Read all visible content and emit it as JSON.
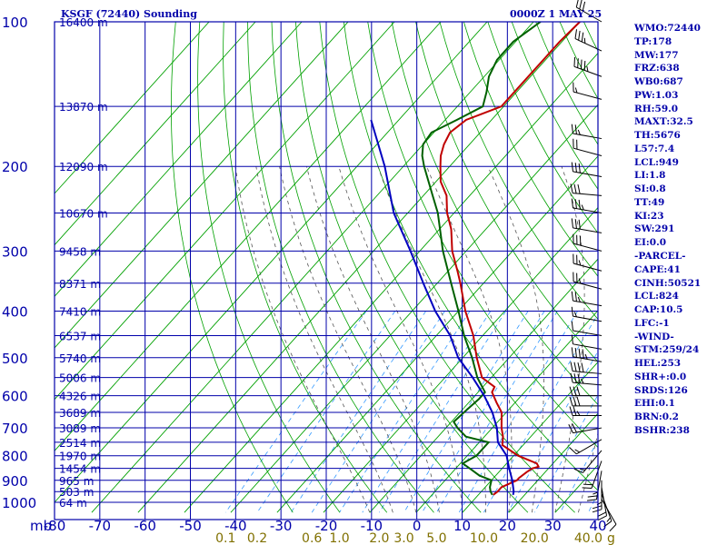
{
  "header": {
    "station": "KSGF (72440) Sounding",
    "time": "0000Z  1 MAY 25"
  },
  "colors": {
    "axes": "#0000aa",
    "isotherm": "#00a000",
    "dry_adiabat": "#00a000",
    "moist_adiabat": "#555555",
    "mixing_ratio": "#3399ff",
    "temperature": "#c00000",
    "dewpoint": "#006000",
    "parcel": "#0000c0",
    "text": "#0000aa",
    "barb": "#000000",
    "mixing_label": "#807000"
  },
  "indices": [
    "WMO:72440",
    "TP:178",
    "MW:177",
    "FRZ:638",
    "WB0:687",
    "PW:1.03",
    "RH:59.0",
    "MAXT:32.5",
    "TH:5676",
    "L57:7.4",
    "LCL:949",
    "LI:1.8",
    "SI:0.8",
    "TT:49",
    "KI:23",
    "SW:291",
    "EI:0.0",
    "-PARCEL-",
    "CAPE:41",
    "CINH:50521",
    "LCL:824",
    "CAP:10.5",
    "LFC:-1",
    "-WIND-",
    "STM:259/24",
    "HEL:253",
    "SHR+:0.0",
    "SRDS:126",
    "EHI:0.1",
    "BRN:0.2",
    "BSHR:238"
  ],
  "chart_data": {
    "type": "line",
    "title": "KSGF (72440) Sounding",
    "subtitle": "0000Z  1 MAY 25",
    "xlabel": "",
    "ylabel": "mb",
    "y_scale": "log",
    "xlim": [
      -80,
      40
    ],
    "ylim": [
      1000,
      100
    ],
    "grid": true,
    "x_ticks": [
      -80,
      -70,
      -60,
      -50,
      -40,
      -30,
      -20,
      -10,
      0,
      10,
      20,
      30,
      40
    ],
    "x_tick_labels": [
      "-80",
      "-70",
      "-60",
      "-50",
      "-40",
      "-30",
      "-20",
      "-10",
      "0",
      "10",
      "20",
      "30",
      "40"
    ],
    "y_ticks": [
      100,
      200,
      300,
      400,
      500,
      600,
      700,
      800,
      900,
      1000
    ],
    "y_tick_labels": [
      "100",
      "200",
      "300",
      "400",
      "500",
      "600",
      "700",
      "800",
      "900",
      "1000"
    ],
    "height_labels": [
      {
        "p": 100,
        "text": "16400 m"
      },
      {
        "p": 150,
        "text": "13870 m"
      },
      {
        "p": 200,
        "text": "12090 m"
      },
      {
        "p": 250,
        "text": "10670 m"
      },
      {
        "p": 300,
        "text": "9458 m"
      },
      {
        "p": 350,
        "text": "8371 m"
      },
      {
        "p": 400,
        "text": "7410 m"
      },
      {
        "p": 450,
        "text": "6537 m"
      },
      {
        "p": 500,
        "text": "5740 m"
      },
      {
        "p": 550,
        "text": "5006 m"
      },
      {
        "p": 600,
        "text": "4326 m"
      },
      {
        "p": 650,
        "text": "3689 m"
      },
      {
        "p": 700,
        "text": "3089 m"
      },
      {
        "p": 750,
        "text": "2514 m"
      },
      {
        "p": 800,
        "text": "1970 m"
      },
      {
        "p": 850,
        "text": "1454 m"
      },
      {
        "p": 900,
        "text": "965 m"
      },
      {
        "p": 950,
        "text": "503 m"
      },
      {
        "p": 1000,
        "text": "64 m"
      }
    ],
    "mixing_ratio_labels": [
      {
        "w": 0.1,
        "text": "0.1"
      },
      {
        "w": 0.2,
        "text": "0.2"
      },
      {
        "w": 0.6,
        "text": "0.6"
      },
      {
        "w": 1.0,
        "text": "1.0"
      },
      {
        "w": 2.0,
        "text": "2.0"
      },
      {
        "w": 3.0,
        "text": "3.0"
      },
      {
        "w": 5.0,
        "text": "5.0"
      },
      {
        "w": 10.0,
        "text": "10.0"
      },
      {
        "w": 20.0,
        "text": "20.0"
      },
      {
        "w": 40.0,
        "text": "40.0"
      }
    ],
    "mixing_ratio_unit": "g",
    "series": [
      {
        "key": "temperature",
        "points": [
          [
            100,
            -60
          ],
          [
            110,
            -60.5
          ],
          [
            120,
            -60.5
          ],
          [
            130,
            -60.5
          ],
          [
            140,
            -60.5
          ],
          [
            150,
            -60.5
          ],
          [
            160,
            -65.5
          ],
          [
            170,
            -66.5
          ],
          [
            180,
            -65.5
          ],
          [
            190,
            -64
          ],
          [
            200,
            -62
          ],
          [
            215,
            -59
          ],
          [
            230,
            -55
          ],
          [
            250,
            -51.5
          ],
          [
            270,
            -47.5
          ],
          [
            300,
            -43
          ],
          [
            330,
            -38
          ],
          [
            350,
            -35
          ],
          [
            400,
            -28.5
          ],
          [
            450,
            -22
          ],
          [
            500,
            -17
          ],
          [
            550,
            -12
          ],
          [
            575,
            -7.5
          ],
          [
            590,
            -7
          ],
          [
            620,
            -4
          ],
          [
            650,
            -1
          ],
          [
            700,
            2
          ],
          [
            730,
            4
          ],
          [
            760,
            5.5
          ],
          [
            800,
            11
          ],
          [
            830,
            16.5
          ],
          [
            843,
            17.5
          ],
          [
            850,
            16.5
          ],
          [
            865,
            16
          ],
          [
            890,
            15.5
          ],
          [
            900,
            15.5
          ],
          [
            930,
            13.5
          ],
          [
            950,
            13.5
          ],
          [
            965,
            13.2
          ]
        ]
      },
      {
        "key": "dewpoint",
        "points": [
          [
            100,
            -68.5
          ],
          [
            110,
            -70.5
          ],
          [
            120,
            -70.5
          ],
          [
            130,
            -69
          ],
          [
            140,
            -66.5
          ],
          [
            150,
            -64.5
          ],
          [
            160,
            -67.5
          ],
          [
            170,
            -70.5
          ],
          [
            180,
            -70
          ],
          [
            190,
            -68
          ],
          [
            200,
            -65.5
          ],
          [
            230,
            -58
          ],
          [
            250,
            -53.5
          ],
          [
            300,
            -45
          ],
          [
            350,
            -37
          ],
          [
            400,
            -30
          ],
          [
            450,
            -24
          ],
          [
            500,
            -18
          ],
          [
            550,
            -13
          ],
          [
            590,
            -8.5
          ],
          [
            610,
            -8.5
          ],
          [
            640,
            -9
          ],
          [
            680,
            -9.5
          ],
          [
            700,
            -7.5
          ],
          [
            730,
            -4
          ],
          [
            750,
            2
          ],
          [
            800,
            2
          ],
          [
            830,
            0.5
          ],
          [
            850,
            3
          ],
          [
            880,
            6.5
          ],
          [
            900,
            10
          ],
          [
            930,
            11
          ],
          [
            950,
            12
          ],
          [
            965,
            13
          ]
        ]
      },
      {
        "key": "parcel",
        "points": [
          [
            160,
            -86
          ],
          [
            200,
            -74
          ],
          [
            250,
            -63
          ],
          [
            300,
            -52
          ],
          [
            350,
            -43
          ],
          [
            400,
            -35
          ],
          [
            450,
            -27
          ],
          [
            500,
            -21
          ],
          [
            550,
            -14
          ],
          [
            600,
            -8
          ],
          [
            650,
            -3
          ],
          [
            700,
            1
          ],
          [
            750,
            4
          ],
          [
            800,
            8.5
          ],
          [
            850,
            11.5
          ],
          [
            900,
            14.5
          ],
          [
            950,
            17
          ],
          [
            965,
            17.5
          ]
        ]
      }
    ],
    "wind_barbs": [
      {
        "p": 100,
        "dir": 300,
        "kt": 30
      },
      {
        "p": 115,
        "dir": 295,
        "kt": 35
      },
      {
        "p": 130,
        "dir": 290,
        "kt": 45
      },
      {
        "p": 145,
        "dir": 285,
        "kt": 55
      },
      {
        "p": 175,
        "dir": 280,
        "kt": 65
      },
      {
        "p": 190,
        "dir": 285,
        "kt": 60
      },
      {
        "p": 210,
        "dir": 280,
        "kt": 70
      },
      {
        "p": 230,
        "dir": 275,
        "kt": 70
      },
      {
        "p": 250,
        "dir": 280,
        "kt": 75
      },
      {
        "p": 275,
        "dir": 280,
        "kt": 70
      },
      {
        "p": 300,
        "dir": 285,
        "kt": 70
      },
      {
        "p": 330,
        "dir": 285,
        "kt": 65
      },
      {
        "p": 360,
        "dir": 285,
        "kt": 65
      },
      {
        "p": 390,
        "dir": 280,
        "kt": 65
      },
      {
        "p": 420,
        "dir": 280,
        "kt": 55
      },
      {
        "p": 450,
        "dir": 280,
        "kt": 50
      },
      {
        "p": 480,
        "dir": 280,
        "kt": 50
      },
      {
        "p": 510,
        "dir": 280,
        "kt": 45
      },
      {
        "p": 540,
        "dir": 275,
        "kt": 40
      },
      {
        "p": 570,
        "dir": 275,
        "kt": 35
      },
      {
        "p": 600,
        "dir": 270,
        "kt": 30
      },
      {
        "p": 630,
        "dir": 270,
        "kt": 30
      },
      {
        "p": 660,
        "dir": 270,
        "kt": 25
      },
      {
        "p": 700,
        "dir": 260,
        "kt": 20
      },
      {
        "p": 740,
        "dir": 240,
        "kt": 15
      },
      {
        "p": 780,
        "dir": 220,
        "kt": 15
      },
      {
        "p": 820,
        "dir": 200,
        "kt": 20
      },
      {
        "p": 860,
        "dir": 190,
        "kt": 25
      },
      {
        "p": 900,
        "dir": 180,
        "kt": 25
      },
      {
        "p": 930,
        "dir": 170,
        "kt": 20
      },
      {
        "p": 960,
        "dir": 160,
        "kt": 15
      },
      {
        "p": 985,
        "dir": 150,
        "kt": 10
      }
    ]
  }
}
